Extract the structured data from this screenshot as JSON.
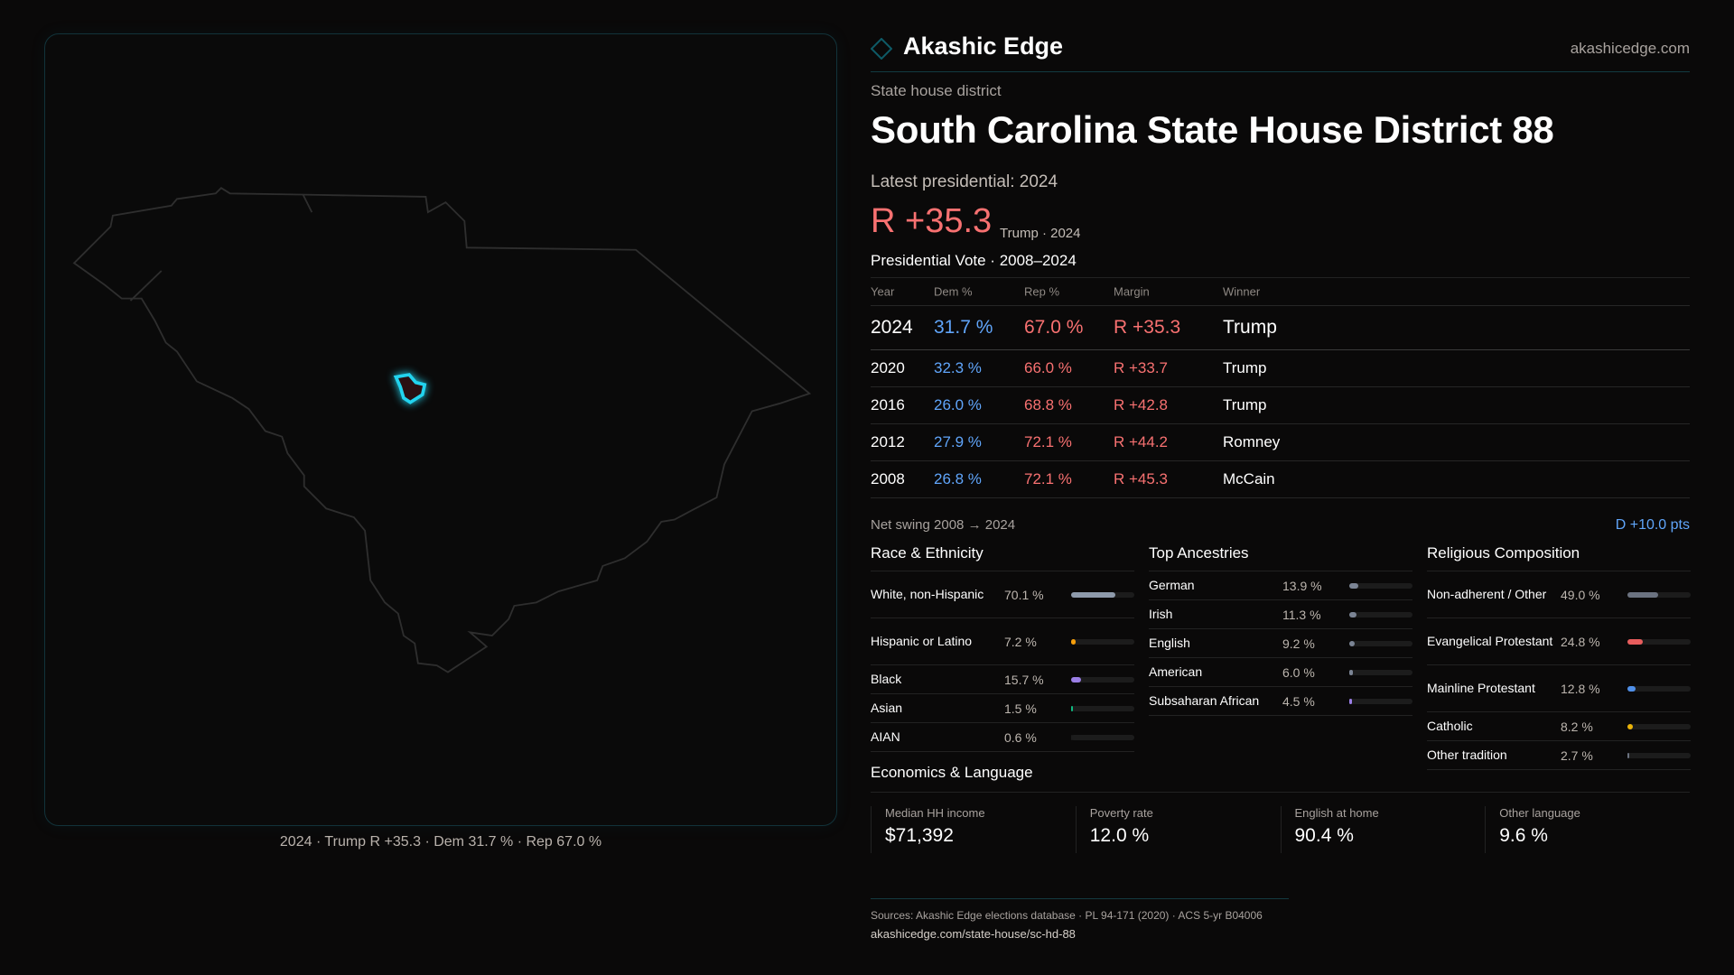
{
  "brand": {
    "name": "Akashic Edge",
    "site": "akashicedge.com",
    "logo_icon": "diamond-icon"
  },
  "map": {
    "caption": "2024 · Trump R +35.3 · Dem 31.7 % · Rep 67.0 %",
    "highlight_color": "#22d3ee"
  },
  "header": {
    "kicker": "State house district",
    "title": "South Carolina State House District 88",
    "latest": "Latest presidential: 2024",
    "margin": "R +35.3",
    "margin_sub": "Trump · 2024"
  },
  "vote": {
    "title": "Presidential Vote · 2008–2024",
    "columns": [
      "Year",
      "Dem %",
      "Rep %",
      "Margin",
      "Winner"
    ],
    "rows": [
      [
        "2024",
        "31.7 %",
        "67.0 %",
        "R +35.3",
        "Trump"
      ],
      [
        "2020",
        "32.3 %",
        "66.0 %",
        "R +33.7",
        "Trump"
      ],
      [
        "2016",
        "26.0 %",
        "68.8 %",
        "R +42.8",
        "Trump"
      ],
      [
        "2012",
        "27.9 %",
        "72.1 %",
        "R +44.2",
        "Romney"
      ],
      [
        "2008",
        "26.8 %",
        "72.1 %",
        "R +45.3",
        "McCain"
      ]
    ],
    "swing_label": "Net swing 2008 → 2024",
    "swing_value": "D +10.0 pts"
  },
  "colors": {
    "dem": "#60a5fa",
    "rep": "#f87171"
  },
  "sections": [
    {
      "title": "Race & Ethnicity",
      "items": [
        {
          "label": "White, non-Hispanic",
          "value": "70.1 %",
          "pct": 70.1,
          "color": "#8e9aab"
        },
        {
          "label": "Hispanic or Latino",
          "value": "7.2 %",
          "pct": 7.2,
          "color": "#f59e0b"
        },
        {
          "label": "Black",
          "value": "15.7 %",
          "pct": 15.7,
          "color": "#9b7fe6"
        },
        {
          "label": "Asian",
          "value": "1.5 %",
          "pct": 1.5,
          "color": "#10b981"
        },
        {
          "label": "AIAN",
          "value": "0.6 %",
          "pct": 0.6,
          "color": "#1c1c1c"
        }
      ]
    },
    {
      "title": "Top Ancestries",
      "items": [
        {
          "label": "German",
          "value": "13.9 %",
          "pct": 13.9,
          "color": "#7b8494"
        },
        {
          "label": "Irish",
          "value": "11.3 %",
          "pct": 11.3,
          "color": "#7b8494"
        },
        {
          "label": "English",
          "value": "9.2 %",
          "pct": 9.2,
          "color": "#7b8494"
        },
        {
          "label": "American",
          "value": "6.0 %",
          "pct": 6.0,
          "color": "#7b8494"
        },
        {
          "label": "Subsaharan African",
          "value": "4.5 %",
          "pct": 4.5,
          "color": "#9b7fe6"
        }
      ]
    },
    {
      "title": "Religious Composition",
      "items": [
        {
          "label": "Non-adherent / Other",
          "value": "49.0 %",
          "pct": 49.0,
          "color": "#6b7280"
        },
        {
          "label": "Evangelical Protestant",
          "value": "24.8 %",
          "pct": 24.8,
          "color": "#e85d5d"
        },
        {
          "label": "Mainline Protestant",
          "value": "12.8 %",
          "pct": 12.8,
          "color": "#4f8fe8"
        },
        {
          "label": "Catholic",
          "value": "8.2 %",
          "pct": 8.2,
          "color": "#eab308"
        },
        {
          "label": "Other tradition",
          "value": "2.7 %",
          "pct": 2.7,
          "color": "#6b7280"
        }
      ]
    }
  ],
  "economics": {
    "title": "Economics & Language",
    "cards": [
      {
        "label": "Median HH income",
        "value": "$71,392"
      },
      {
        "label": "Poverty rate",
        "value": "12.0 %"
      },
      {
        "label": "English at home",
        "value": "90.4 %"
      },
      {
        "label": "Other language",
        "value": "9.6 %"
      }
    ]
  },
  "footer": {
    "sources": "Sources: Akashic Edge elections database · PL 94-171 (2020) · ACS 5-yr B04006",
    "url": "akashicedge.com/state-house/sc-hd-88"
  }
}
